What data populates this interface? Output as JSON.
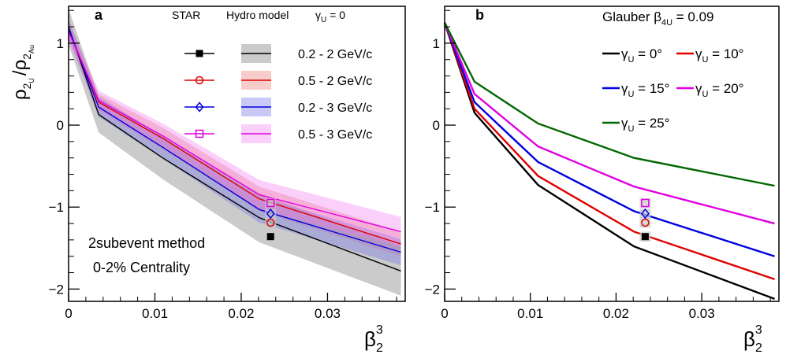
{
  "chart_data": [
    {
      "panel_label": "a",
      "type": "line",
      "xlabel": {
        "main": "β",
        "sub": "2",
        "sup": "3"
      },
      "ylabel": {
        "num": "ρ",
        "num_sub": "2",
        "num_subsub": "U",
        "den": "ρ",
        "den_sub": "2",
        "den_subsub": "Au"
      },
      "xlim": [
        0,
        0.039
      ],
      "ylim": [
        -2.15,
        1.45
      ],
      "x_ticks": [
        0,
        0.01,
        0.02,
        0.03
      ],
      "x_tick_labels": [
        "0",
        "0.01",
        "0.02",
        "0.03"
      ],
      "y_ticks": [
        -2,
        -1,
        0,
        1
      ],
      "y_tick_labels": [
        "−2",
        "−1",
        "0",
        "1"
      ],
      "legend_headers": {
        "star": "STAR",
        "hydro": "Hydro model",
        "gamma_prefix": "γ",
        "gamma_sub": "U",
        "gamma_suffix": " = 0"
      },
      "annotation_lines": [
        "2subevent method",
        "0-2% Centrality"
      ],
      "series": [
        {
          "name": "0.2 - 2 GeV/c",
          "color": "#000000",
          "band_color": "#8c8c8c",
          "band_opacity": 0.45,
          "marker": "filled-square",
          "x": [
            0,
            0.00349,
            0.0109,
            0.0221,
            0.0385
          ],
          "y": [
            1.2,
            0.13,
            -0.4,
            -1.13,
            -1.78
          ],
          "band": [
            0.22,
            0.22,
            0.26,
            0.3,
            0.3
          ],
          "star_x": 0.0234,
          "star_y": -1.36,
          "star_err": 0.06
        },
        {
          "name": "0.5 - 2 GeV/c",
          "color": "#e00000",
          "band_color": "#f08080",
          "band_opacity": 0.4,
          "marker": "open-circle",
          "x": [
            0,
            0.00349,
            0.0109,
            0.0221,
            0.0385
          ],
          "y": [
            1.16,
            0.28,
            -0.16,
            -0.9,
            -1.45
          ],
          "band": [
            0.1,
            0.1,
            0.13,
            0.15,
            0.15
          ],
          "star_x": 0.0234,
          "star_y": -1.19,
          "star_err": 0.06
        },
        {
          "name": "0.2 - 3 GeV/c",
          "color": "#0000e0",
          "band_color": "#7878e6",
          "band_opacity": 0.4,
          "marker": "open-diamond",
          "x": [
            0,
            0.00349,
            0.0109,
            0.0221,
            0.0385
          ],
          "y": [
            1.18,
            0.22,
            -0.27,
            -1.03,
            -1.55
          ],
          "band": [
            0.12,
            0.12,
            0.14,
            0.16,
            0.16
          ],
          "star_x": 0.0234,
          "star_y": -1.08,
          "star_err": 0.06
        },
        {
          "name": "0.5 - 3 GeV/c",
          "color": "#e000e0",
          "band_color": "#f078f0",
          "band_opacity": 0.35,
          "marker": "open-square",
          "x": [
            0,
            0.00349,
            0.0109,
            0.0221,
            0.0385
          ],
          "y": [
            1.14,
            0.3,
            -0.13,
            -0.85,
            -1.3
          ],
          "band": [
            0.12,
            0.12,
            0.15,
            0.18,
            0.18
          ],
          "star_x": 0.0234,
          "star_y": -0.95,
          "star_err": 0.06
        }
      ]
    },
    {
      "panel_label": "b",
      "type": "line",
      "title_prefix": "Glauber β",
      "title_sub": "4U",
      "title_suffix": " = 0.09",
      "xlabel": {
        "main": "β",
        "sub": "2",
        "sup": "3"
      },
      "xlim": [
        0,
        0.039
      ],
      "ylim": [
        -2.15,
        1.45
      ],
      "x_ticks": [
        0,
        0.01,
        0.02,
        0.03
      ],
      "x_tick_labels": [
        "0",
        "0.01",
        "0.02",
        "0.03"
      ],
      "y_ticks": [
        -2,
        -1,
        0,
        1
      ],
      "y_tick_labels": [
        "−2",
        "−1",
        "0",
        "1"
      ],
      "series": [
        {
          "name_prefix": "γ",
          "name_sub": "U",
          "name_value": " = 0°",
          "color": "#000000",
          "x": [
            0,
            0.00349,
            0.0109,
            0.0221,
            0.0385
          ],
          "y": [
            1.25,
            0.15,
            -0.73,
            -1.48,
            -2.12
          ]
        },
        {
          "name_prefix": "γ",
          "name_sub": "U",
          "name_value": " = 10°",
          "color": "#e00000",
          "x": [
            0,
            0.00349,
            0.0109,
            0.0221,
            0.0385
          ],
          "y": [
            1.25,
            0.2,
            -0.62,
            -1.3,
            -1.88
          ]
        },
        {
          "name_prefix": "γ",
          "name_sub": "U",
          "name_value": " = 15°",
          "color": "#0000e0",
          "x": [
            0,
            0.00349,
            0.0109,
            0.0221,
            0.0385
          ],
          "y": [
            1.25,
            0.28,
            -0.45,
            -1.05,
            -1.6
          ]
        },
        {
          "name_prefix": "γ",
          "name_sub": "U",
          "name_value": " = 20°",
          "color": "#e000e0",
          "x": [
            0,
            0.00349,
            0.0109,
            0.0221,
            0.0385
          ],
          "y": [
            1.25,
            0.38,
            -0.26,
            -0.75,
            -1.2
          ]
        },
        {
          "name_prefix": "γ",
          "name_sub": "U",
          "name_value": " = 25°",
          "color": "#006600",
          "x": [
            0,
            0.00349,
            0.0109,
            0.0221,
            0.0385
          ],
          "y": [
            1.25,
            0.53,
            0.02,
            -0.4,
            -0.74
          ]
        }
      ],
      "star_points": [
        {
          "marker": "filled-square",
          "color": "#000000",
          "x": 0.0234,
          "y": -1.36,
          "err": 0.06
        },
        {
          "marker": "open-circle",
          "color": "#e00000",
          "x": 0.0234,
          "y": -1.19,
          "err": 0.06
        },
        {
          "marker": "open-diamond",
          "color": "#0000e0",
          "x": 0.0234,
          "y": -1.08,
          "err": 0.06
        },
        {
          "marker": "open-square",
          "color": "#e000e0",
          "x": 0.0234,
          "y": -0.95,
          "err": 0.06
        }
      ]
    }
  ]
}
